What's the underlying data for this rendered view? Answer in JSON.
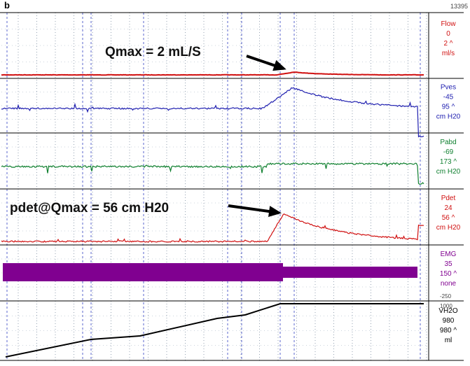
{
  "header": {
    "label": "b",
    "id": "13395"
  },
  "annotations": {
    "qmax": "Qmax = 2 mL/S",
    "pdet": "pdet@Qmax = 56 cm H20"
  },
  "channels": [
    {
      "name": "Flow",
      "value": "0",
      "scale": "2 ^",
      "unit": "ml/s"
    },
    {
      "name": "Pves",
      "value": "-45",
      "scale": "95 ^",
      "unit": "cm H20"
    },
    {
      "name": "Pabd",
      "value": "-69",
      "scale": "173 ^",
      "unit": "cm H20"
    },
    {
      "name": "Pdet",
      "value": "24",
      "scale": "56 ^",
      "unit": "cm H20"
    },
    {
      "name": "EMG",
      "value": "35",
      "scale": "150 ^",
      "unit": "none"
    },
    {
      "name": "VH2O",
      "value": "980",
      "scale": "980 ^",
      "unit": "ml"
    }
  ],
  "scale_marks": {
    "emg_bottom": "-250",
    "vh2o_top": "1000"
  }
}
